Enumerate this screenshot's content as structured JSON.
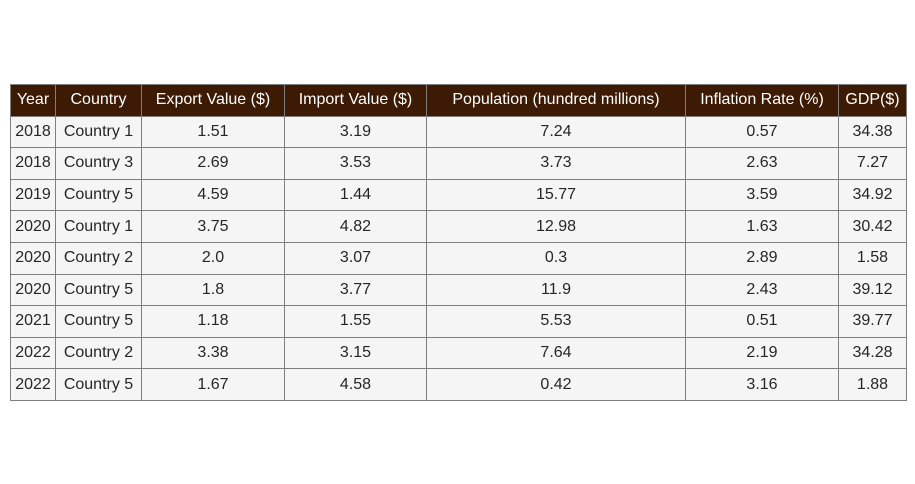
{
  "colors": {
    "header_bg": "#3d1a04",
    "header_text": "#ffffff",
    "cell_bg": "#f5f5f5",
    "border": "#7f7f7f",
    "text": "#262626"
  },
  "chart_data": {
    "type": "table",
    "columns": [
      "Year",
      "Country",
      "Export Value ($)",
      "Import Value ($)",
      "Population (hundred millions)",
      "Inflation Rate (%)",
      "GDP($)"
    ],
    "rows": [
      [
        "2018",
        "Country 1",
        "1.51",
        "3.19",
        "7.24",
        "0.57",
        "34.38"
      ],
      [
        "2018",
        "Country 3",
        "2.69",
        "3.53",
        "3.73",
        "2.63",
        "7.27"
      ],
      [
        "2019",
        "Country 5",
        "4.59",
        "1.44",
        "15.77",
        "3.59",
        "34.92"
      ],
      [
        "2020",
        "Country 1",
        "3.75",
        "4.82",
        "12.98",
        "1.63",
        "30.42"
      ],
      [
        "2020",
        "Country 2",
        "2.0",
        "3.07",
        "0.3",
        "2.89",
        "1.58"
      ],
      [
        "2020",
        "Country 5",
        "1.8",
        "3.77",
        "11.9",
        "2.43",
        "39.12"
      ],
      [
        "2021",
        "Country 5",
        "1.18",
        "1.55",
        "5.53",
        "0.51",
        "39.77"
      ],
      [
        "2022",
        "Country 2",
        "3.38",
        "3.15",
        "7.64",
        "2.19",
        "34.28"
      ],
      [
        "2022",
        "Country 5",
        "1.67",
        "4.58",
        "0.42",
        "3.16",
        "1.88"
      ]
    ]
  }
}
